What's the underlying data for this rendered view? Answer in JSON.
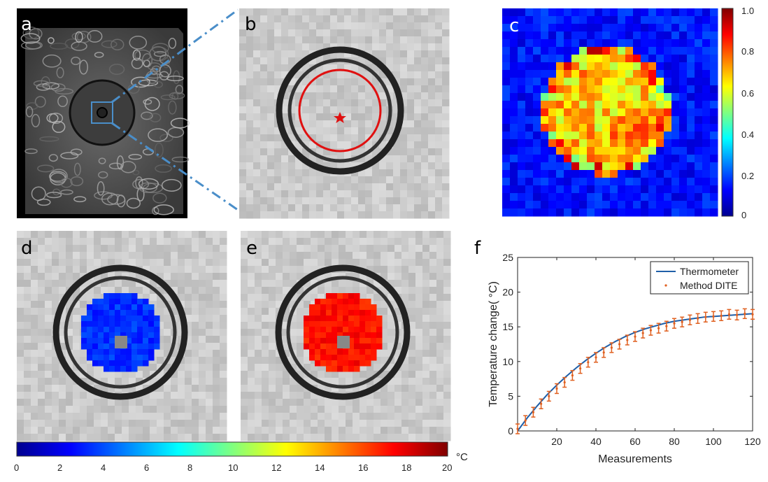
{
  "panel_labels": {
    "a": "a",
    "b": "b",
    "c": "c",
    "d": "d",
    "e": "e",
    "f": "f"
  },
  "colorbar_c": {
    "ticks": [
      "1.0",
      "0.8",
      "0.6",
      "0.4",
      "0.2",
      "0"
    ],
    "min": 0,
    "max": 1
  },
  "colorbar_temp": {
    "ticks": [
      "0",
      "2",
      "4",
      "6",
      "8",
      "10",
      "12",
      "14",
      "16",
      "18",
      "20"
    ],
    "unit": "°C",
    "min": 0,
    "max": 20
  },
  "colors": {
    "red_circle": "#e01010",
    "blue_overlay": "#1440f0",
    "red_overlay": "#ff2a10",
    "zoom_line": "#4a8ec9",
    "series_fit": "#1f5fa8",
    "series_points": "#e06020"
  },
  "chart_data": {
    "type": "line",
    "title": "",
    "xlabel": "Measurements",
    "ylabel": "Temperature change( °C)",
    "xlim": [
      0,
      120
    ],
    "ylim": [
      0,
      25
    ],
    "xticks": [
      "20",
      "40",
      "60",
      "80",
      "100",
      "120"
    ],
    "yticks": [
      "0",
      "5",
      "10",
      "15",
      "20",
      "25"
    ],
    "legend": {
      "placement": "top-right",
      "entries": [
        "Thermometer",
        "Method DITE"
      ]
    },
    "series": [
      {
        "name": "Thermometer",
        "style": "line",
        "x": [
          0,
          5,
          10,
          15,
          20,
          25,
          30,
          35,
          40,
          45,
          50,
          55,
          60,
          65,
          70,
          75,
          80,
          85,
          90,
          95,
          100,
          105,
          110,
          115,
          120
        ],
        "values": [
          0,
          1.9,
          3.6,
          5.2,
          6.6,
          7.9,
          9.1,
          10.2,
          11.2,
          12.1,
          12.9,
          13.6,
          14.2,
          14.7,
          15.1,
          15.5,
          15.8,
          16.0,
          16.2,
          16.4,
          16.5,
          16.6,
          16.7,
          16.8,
          16.9
        ]
      },
      {
        "name": "Method DITE",
        "style": "errorbar",
        "error": 0.7,
        "x": [
          0,
          4,
          8,
          12,
          16,
          20,
          24,
          28,
          32,
          36,
          40,
          44,
          48,
          52,
          56,
          60,
          64,
          68,
          72,
          76,
          80,
          84,
          88,
          92,
          96,
          100,
          104,
          108,
          112,
          116,
          120
        ],
        "values": [
          0.3,
          1.5,
          2.7,
          3.9,
          5.0,
          6.1,
          7.0,
          8.0,
          9.0,
          9.9,
          10.6,
          11.3,
          12.0,
          12.5,
          13.1,
          13.6,
          14.1,
          14.5,
          14.8,
          15.1,
          15.5,
          15.7,
          16.0,
          16.2,
          16.4,
          16.5,
          16.6,
          16.8,
          16.7,
          16.9,
          16.8
        ]
      }
    ]
  }
}
